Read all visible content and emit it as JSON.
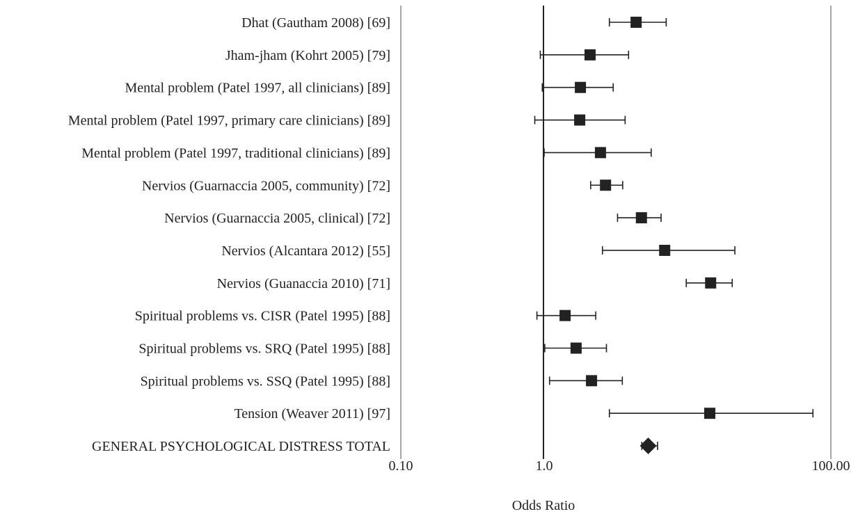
{
  "chart_data": {
    "type": "forest",
    "x_scale": "log",
    "xlim": [
      0.1,
      100
    ],
    "xlabel": "Odds Ratio",
    "x_ticks": [
      {
        "value": 0.1,
        "label": "0.10"
      },
      {
        "value": 1,
        "label": "1.0"
      },
      {
        "value": 100,
        "label": "100.00"
      }
    ],
    "reference_line": 1,
    "rows": [
      {
        "label": "Dhat (Gautham 2008) [69]",
        "or": 4.38,
        "lo": 2.85,
        "hi": 7.1,
        "marker": "square"
      },
      {
        "label": "Jham-jham (Kohrt 2005) [79]",
        "or": 2.09,
        "lo": 0.94,
        "hi": 3.88,
        "marker": "square"
      },
      {
        "label": "Mental problem (Patel 1997, all clinicians) [89]",
        "or": 1.79,
        "lo": 0.97,
        "hi": 3.03,
        "marker": "square"
      },
      {
        "label": "Mental problem (Patel 1997, primary care clinicians) [89]",
        "or": 1.77,
        "lo": 0.86,
        "hi": 3.67,
        "marker": "square"
      },
      {
        "label": "Mental problem (Patel 1997, traditional clinicians) [89]",
        "or": 2.47,
        "lo": 1.0,
        "hi": 5.58,
        "marker": "square"
      },
      {
        "label": "Nervios (Guarnaccia 2005, community) [72]",
        "or": 2.68,
        "lo": 2.11,
        "hi": 3.53,
        "marker": "square"
      },
      {
        "label": "Nervios (Guarnaccia 2005, clinical) [72]",
        "or": 4.77,
        "lo": 3.25,
        "hi": 6.54,
        "marker": "square"
      },
      {
        "label": "Nervios (Alcantara 2012) [55]",
        "or": 6.93,
        "lo": 2.55,
        "hi": 21.4,
        "marker": "square"
      },
      {
        "label": "Nervios (Guanaccia 2010) [71]",
        "or": 14.5,
        "lo": 9.8,
        "hi": 20.5,
        "marker": "square"
      },
      {
        "label": "Spiritual problems vs. CISR (Patel 1995) [88]",
        "or": 1.4,
        "lo": 0.89,
        "hi": 2.29,
        "marker": "square"
      },
      {
        "label": "Spiritual problems vs. SRQ (Patel 1995) [88]",
        "or": 1.67,
        "lo": 1.01,
        "hi": 2.72,
        "marker": "square"
      },
      {
        "label": "Spiritual problems vs. SSQ (Patel 1995) [88]",
        "or": 2.14,
        "lo": 1.09,
        "hi": 3.51,
        "marker": "square"
      },
      {
        "label": "Tension (Weaver 2011) [97]",
        "or": 14.3,
        "lo": 2.85,
        "hi": 75.0,
        "marker": "square"
      },
      {
        "label": "GENERAL PSYCHOLOGICAL DISTRESS TOTAL",
        "or": 5.32,
        "lo": 4.8,
        "hi": 6.18,
        "marker": "diamond"
      }
    ]
  }
}
